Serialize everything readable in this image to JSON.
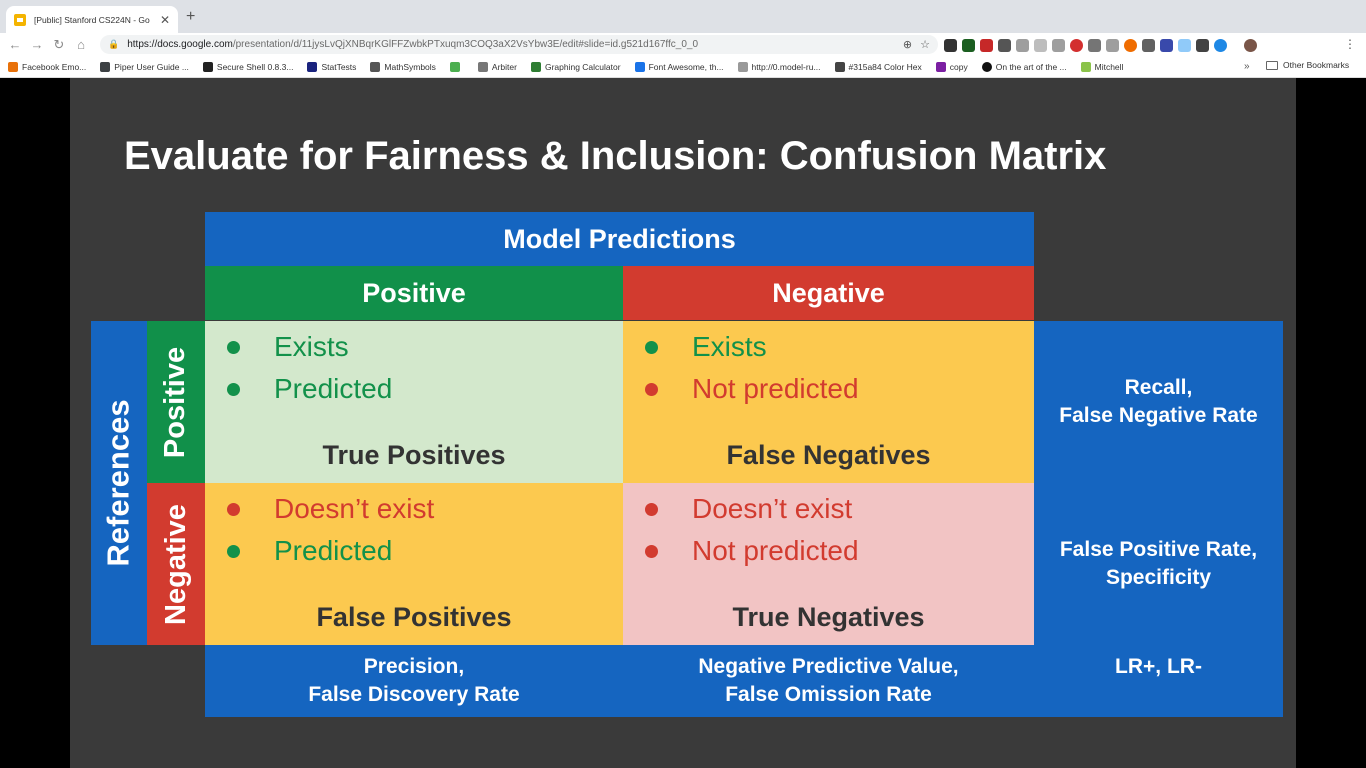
{
  "browser": {
    "tab_title": "[Public] Stanford CS224N - Go",
    "url_host": "https://docs.google.com",
    "url_path": "/presentation/d/11jysLvQjXNBqrKGlFFZwbkPTxuqm3COQ3aX2VsYbw3E/edit#slide=id.g521d167ffc_0_0",
    "bookmarks": [
      {
        "label": "Facebook Emo...",
        "color": "#e8710a"
      },
      {
        "label": "Piper User Guide ...",
        "color": "#3c4043"
      },
      {
        "label": "Secure Shell 0.8.3...",
        "color": "#222222"
      },
      {
        "label": "StatTests",
        "color": "#1a237e"
      },
      {
        "label": "MathSymbols",
        "color": "#555555"
      },
      {
        "label": "",
        "color": "#4caf50"
      },
      {
        "label": "Arbiter",
        "color": "#777777"
      },
      {
        "label": "Graphing Calculator",
        "color": "#2e7d32"
      },
      {
        "label": "Font Awesome, th...",
        "color": "#1a73e8"
      },
      {
        "label": "http://0.model-ru...",
        "color": "#999999"
      },
      {
        "label": "#315a84 Color Hex",
        "color": "#444444"
      },
      {
        "label": "copy",
        "color": "#7b1fa2"
      },
      {
        "label": "On the art of the ...",
        "color": "#111111"
      },
      {
        "label": "Mitchell",
        "color": "#8bc34a"
      }
    ],
    "overflow": "»",
    "other_bookmarks": "Other Bookmarks"
  },
  "slide": {
    "title": "Evaluate for Fairness & Inclusion: Confusion Matrix",
    "model_predictions": "Model Predictions",
    "pred_positive": "Positive",
    "pred_negative": "Negative",
    "references": "References",
    "ref_positive": "Positive",
    "ref_negative": "Negative",
    "tp": {
      "line1": "Exists",
      "line2": "Predicted",
      "label": "True Positives"
    },
    "fn": {
      "line1": "Exists",
      "line2": "Not predicted",
      "label": "False Negatives"
    },
    "fp": {
      "line1": "Doesn’t exist",
      "line2": "Predicted",
      "label": "False Positives"
    },
    "tn": {
      "line1": "Doesn’t exist",
      "line2": "Not predicted",
      "label": "True Negatives"
    },
    "side_r1_a": "Recall,",
    "side_r1_b": "False Negative Rate",
    "side_r2_a": "False Positive Rate,",
    "side_r2_b": "Specificity",
    "bot1_a": "Precision,",
    "bot1_b": "False Discovery Rate",
    "bot2_a": "Negative Predictive Value,",
    "bot2_b": "False Omission Rate",
    "bot3": "LR+, LR-"
  },
  "colors": {
    "blue": "#1565c0",
    "green": "#11904a",
    "red": "#d23b2f",
    "yellow": "#fcc94f",
    "light_green": "#d3e8cc",
    "pink": "#f2c4c4"
  }
}
